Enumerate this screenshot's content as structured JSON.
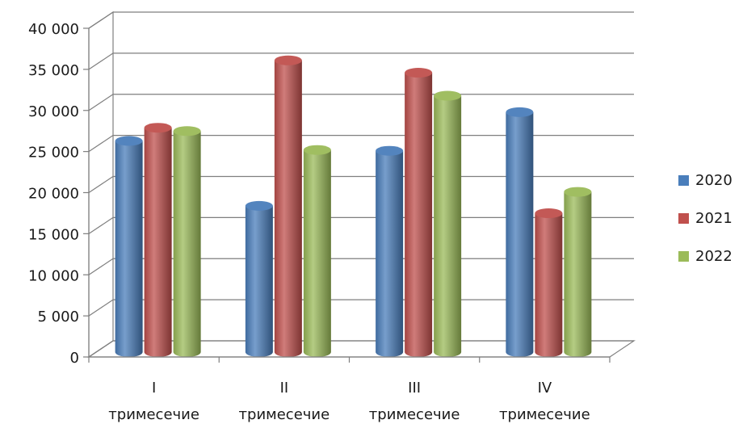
{
  "chart_data": {
    "type": "bar",
    "title": "",
    "xlabel": "",
    "ylabel": "",
    "categories": [
      [
        "I",
        "тримесечие"
      ],
      [
        "II",
        "тримесечие"
      ],
      [
        "III",
        "тримесечие"
      ],
      [
        "IV",
        "тримесечие"
      ]
    ],
    "series": [
      {
        "name": "2020",
        "color": "#4a7ebb",
        "values": [
          25700,
          17800,
          24500,
          29200
        ]
      },
      {
        "name": "2021",
        "color": "#c0504d",
        "values": [
          27300,
          35500,
          34000,
          16900
        ]
      },
      {
        "name": "2022",
        "color": "#9bbb59",
        "values": [
          26900,
          24600,
          31200,
          19500
        ]
      }
    ],
    "ylim": [
      0,
      40000
    ],
    "yticks": [
      "0",
      "5 000",
      "10 000",
      "15 000",
      "20 000",
      "25 000",
      "30 000",
      "35 000",
      "40 000"
    ],
    "grid": true,
    "legend_position": "right",
    "three_d": true
  }
}
